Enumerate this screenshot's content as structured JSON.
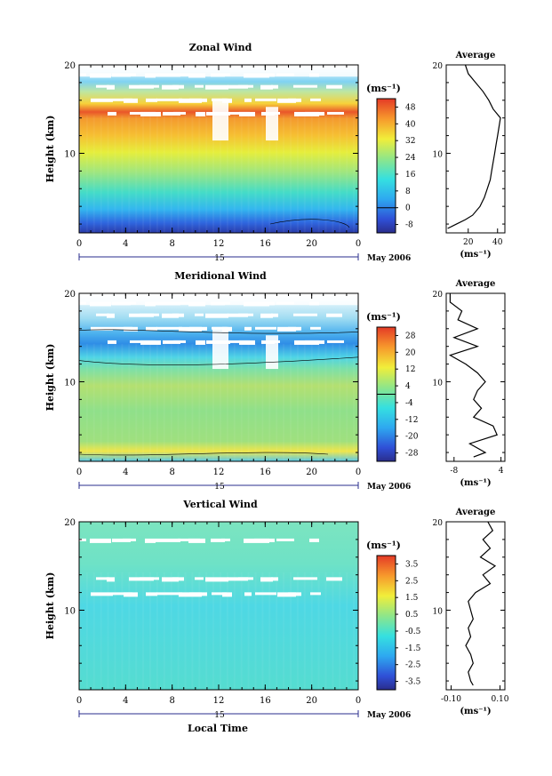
{
  "figure": {
    "xlabel": "Local Time",
    "date_label": "May 2006",
    "day_label": "15",
    "ylabel": "Height (km)",
    "unit_label": "(ms⁻¹)",
    "average_title": "Average"
  },
  "chart_data": [
    {
      "type": "heatmap",
      "title": "Zonal Wind",
      "x_ticks": [
        "0",
        "4",
        "8",
        "12",
        "16",
        "20",
        "0"
      ],
      "xlim": [
        0,
        24
      ],
      "y_ticks": [
        "10",
        "20"
      ],
      "ylim": [
        1,
        20
      ],
      "colorbar": {
        "ticks": [
          "-8",
          "0",
          "8",
          "16",
          "24",
          "32",
          "40",
          "48"
        ],
        "range": [
          -12,
          52
        ],
        "zero_line": 0
      },
      "profile": {
        "title": "Average",
        "x_ticks": [
          "20",
          "40"
        ],
        "xlim": [
          5,
          45
        ],
        "xlabel": "(ms⁻¹)",
        "y": [
          1.5,
          2,
          2.5,
          3,
          4,
          5,
          6,
          7,
          8,
          9,
          10,
          11,
          12,
          13,
          14,
          15,
          16,
          17,
          18,
          19,
          20
        ],
        "x": [
          6,
          12,
          18,
          23,
          28,
          31,
          33,
          35,
          36,
          37,
          38,
          39,
          40,
          41,
          42,
          37,
          34,
          30,
          25,
          20,
          18
        ]
      }
    },
    {
      "type": "heatmap",
      "title": "Meridional Wind",
      "x_ticks": [
        "0",
        "4",
        "8",
        "12",
        "16",
        "20",
        "0"
      ],
      "xlim": [
        0,
        24
      ],
      "y_ticks": [
        "10",
        "20"
      ],
      "ylim": [
        1,
        20
      ],
      "colorbar": {
        "ticks": [
          "-28",
          "-20",
          "-12",
          "-4",
          "4",
          "12",
          "20",
          "28"
        ],
        "range": [
          -32,
          32
        ],
        "zero_line": 0
      },
      "profile": {
        "title": "Average",
        "x_ticks": [
          "-8",
          "4"
        ],
        "xlim": [
          -10,
          5
        ],
        "xlabel": "(ms⁻¹)",
        "y": [
          1.5,
          2,
          3,
          4,
          5,
          6,
          7,
          8,
          9,
          10,
          11,
          12,
          13,
          14,
          15,
          16,
          17,
          18,
          19,
          20
        ],
        "x": [
          -3,
          0,
          -4,
          3,
          2,
          -3,
          -1,
          -3,
          -2,
          0,
          -2,
          -5,
          -9,
          -2,
          -8,
          -2,
          -7,
          -6,
          -9,
          -9
        ]
      }
    },
    {
      "type": "heatmap",
      "title": "Vertical Wind",
      "x_ticks": [
        "0",
        "4",
        "8",
        "12",
        "16",
        "20",
        "0"
      ],
      "xlim": [
        0,
        24
      ],
      "y_ticks": [
        "10",
        "20"
      ],
      "ylim": [
        1,
        20
      ],
      "colorbar": {
        "ticks": [
          "-3.5",
          "-2.5",
          "-1.5",
          "-0.5",
          "0.5",
          "1.5",
          "2.5",
          "3.5"
        ],
        "range": [
          -4,
          4
        ],
        "zero_line": null
      },
      "profile": {
        "title": "Average",
        "x_ticks": [
          "-0.10",
          "0.10"
        ],
        "xlim": [
          -0.12,
          0.12
        ],
        "xlabel": "(ms⁻¹)",
        "y": [
          1.5,
          2,
          3,
          4,
          5,
          6,
          7,
          8,
          9,
          10,
          11,
          12,
          13,
          14,
          15,
          16,
          17,
          18,
          19,
          20
        ],
        "x": [
          -0.01,
          -0.02,
          -0.03,
          -0.01,
          -0.02,
          -0.04,
          -0.02,
          -0.03,
          -0.01,
          -0.02,
          -0.03,
          0.0,
          0.06,
          0.03,
          0.08,
          0.02,
          0.06,
          0.03,
          0.07,
          0.05
        ]
      }
    }
  ]
}
